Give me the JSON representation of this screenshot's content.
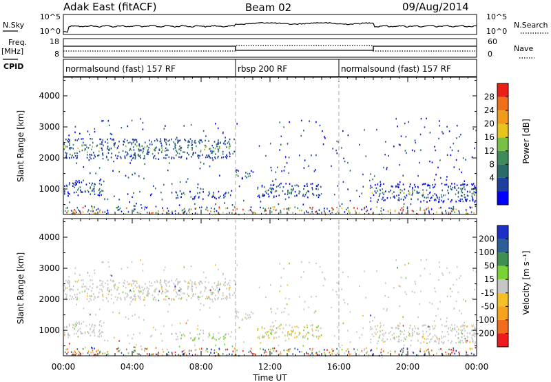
{
  "header": {
    "station": "Adak East (fitACF)",
    "beam": "Beam 02",
    "date": "09/Aug/2014"
  },
  "small_panels": {
    "nsky_label": "N.Sky",
    "nsearch_label": "N.Search",
    "nsky_ticks": [
      "10^5",
      "10^0"
    ],
    "nsearch_ticks": [
      "10^5",
      "10^0"
    ],
    "freq_label_1": "Freq.",
    "freq_label_2": "[MHz]",
    "freq_ticks": [
      "18",
      "8"
    ],
    "nave_label": "Nave",
    "nave_ticks": [
      "60",
      "0"
    ],
    "cpid_label": "CPID"
  },
  "cpid_segments": [
    {
      "start": 0,
      "end": 10,
      "label": "normalsound (fast) 157 RF"
    },
    {
      "start": 10,
      "end": 16,
      "label": "rbsp 200 RF"
    },
    {
      "start": 16,
      "end": 24,
      "label": "normalsound (fast) 157 RF"
    }
  ],
  "colors": {
    "power": [
      "#0000ff",
      "#1e3ea0",
      "#2a6a6a",
      "#3f8c5a",
      "#7ac143",
      "#e8c51c",
      "#f29a1c",
      "#f06f1a",
      "#ea1f16"
    ],
    "velocity": [
      "#ee1c1c",
      "#f16c1d",
      "#f7a21d",
      "#f4c025",
      "#c6c6c6",
      "#7bd234",
      "#3f8f53",
      "#2a5f98",
      "#1c30c8"
    ]
  },
  "chart_data": [
    {
      "type": "heatmap",
      "name": "power",
      "ylabel": "Slant Range [km]",
      "xlim": [
        0,
        24
      ],
      "ylim": [
        180,
        4600
      ],
      "yticks": [
        "1000",
        "2000",
        "3000",
        "4000"
      ],
      "colorbar": {
        "label": "Power [dB]",
        "ticks": [
          "4",
          "8",
          "12",
          "16",
          "20",
          "24",
          "28"
        ]
      },
      "regions": [
        {
          "t0": 0.0,
          "t1": 10.0,
          "r0": 2000,
          "r1": 2650,
          "note": "upper band"
        },
        {
          "t0": 0.0,
          "t1": 2.3,
          "r0": 800,
          "r1": 1300,
          "note": "lower band"
        },
        {
          "t0": 6.5,
          "t1": 9.5,
          "r0": 700,
          "r1": 950,
          "note": "lower patch"
        },
        {
          "t0": 10.0,
          "t1": 11.0,
          "r0": 1350,
          "r1": 1650,
          "note": "patch"
        },
        {
          "t0": 11.2,
          "t1": 15.0,
          "r0": 750,
          "r1": 1200,
          "note": "band"
        },
        {
          "t0": 17.8,
          "t1": 24.0,
          "r0": 600,
          "r1": 1200,
          "note": "lower band"
        }
      ]
    },
    {
      "type": "heatmap",
      "name": "velocity",
      "xlabel": "Time UT",
      "ylabel": "Slant Range [km]",
      "xlim": [
        0,
        24
      ],
      "ylim": [
        180,
        4600
      ],
      "xticks": [
        "00:00",
        "04:00",
        "08:00",
        "12:00",
        "16:00",
        "20:00",
        "00:00"
      ],
      "yticks": [
        "1000",
        "2000",
        "3000",
        "4000"
      ],
      "colorbar": {
        "label": "Velocity [m s⁻¹]",
        "ticks": [
          "200",
          "100",
          "50",
          "15",
          "-15",
          "-50",
          "-100",
          "-200"
        ]
      }
    }
  ]
}
